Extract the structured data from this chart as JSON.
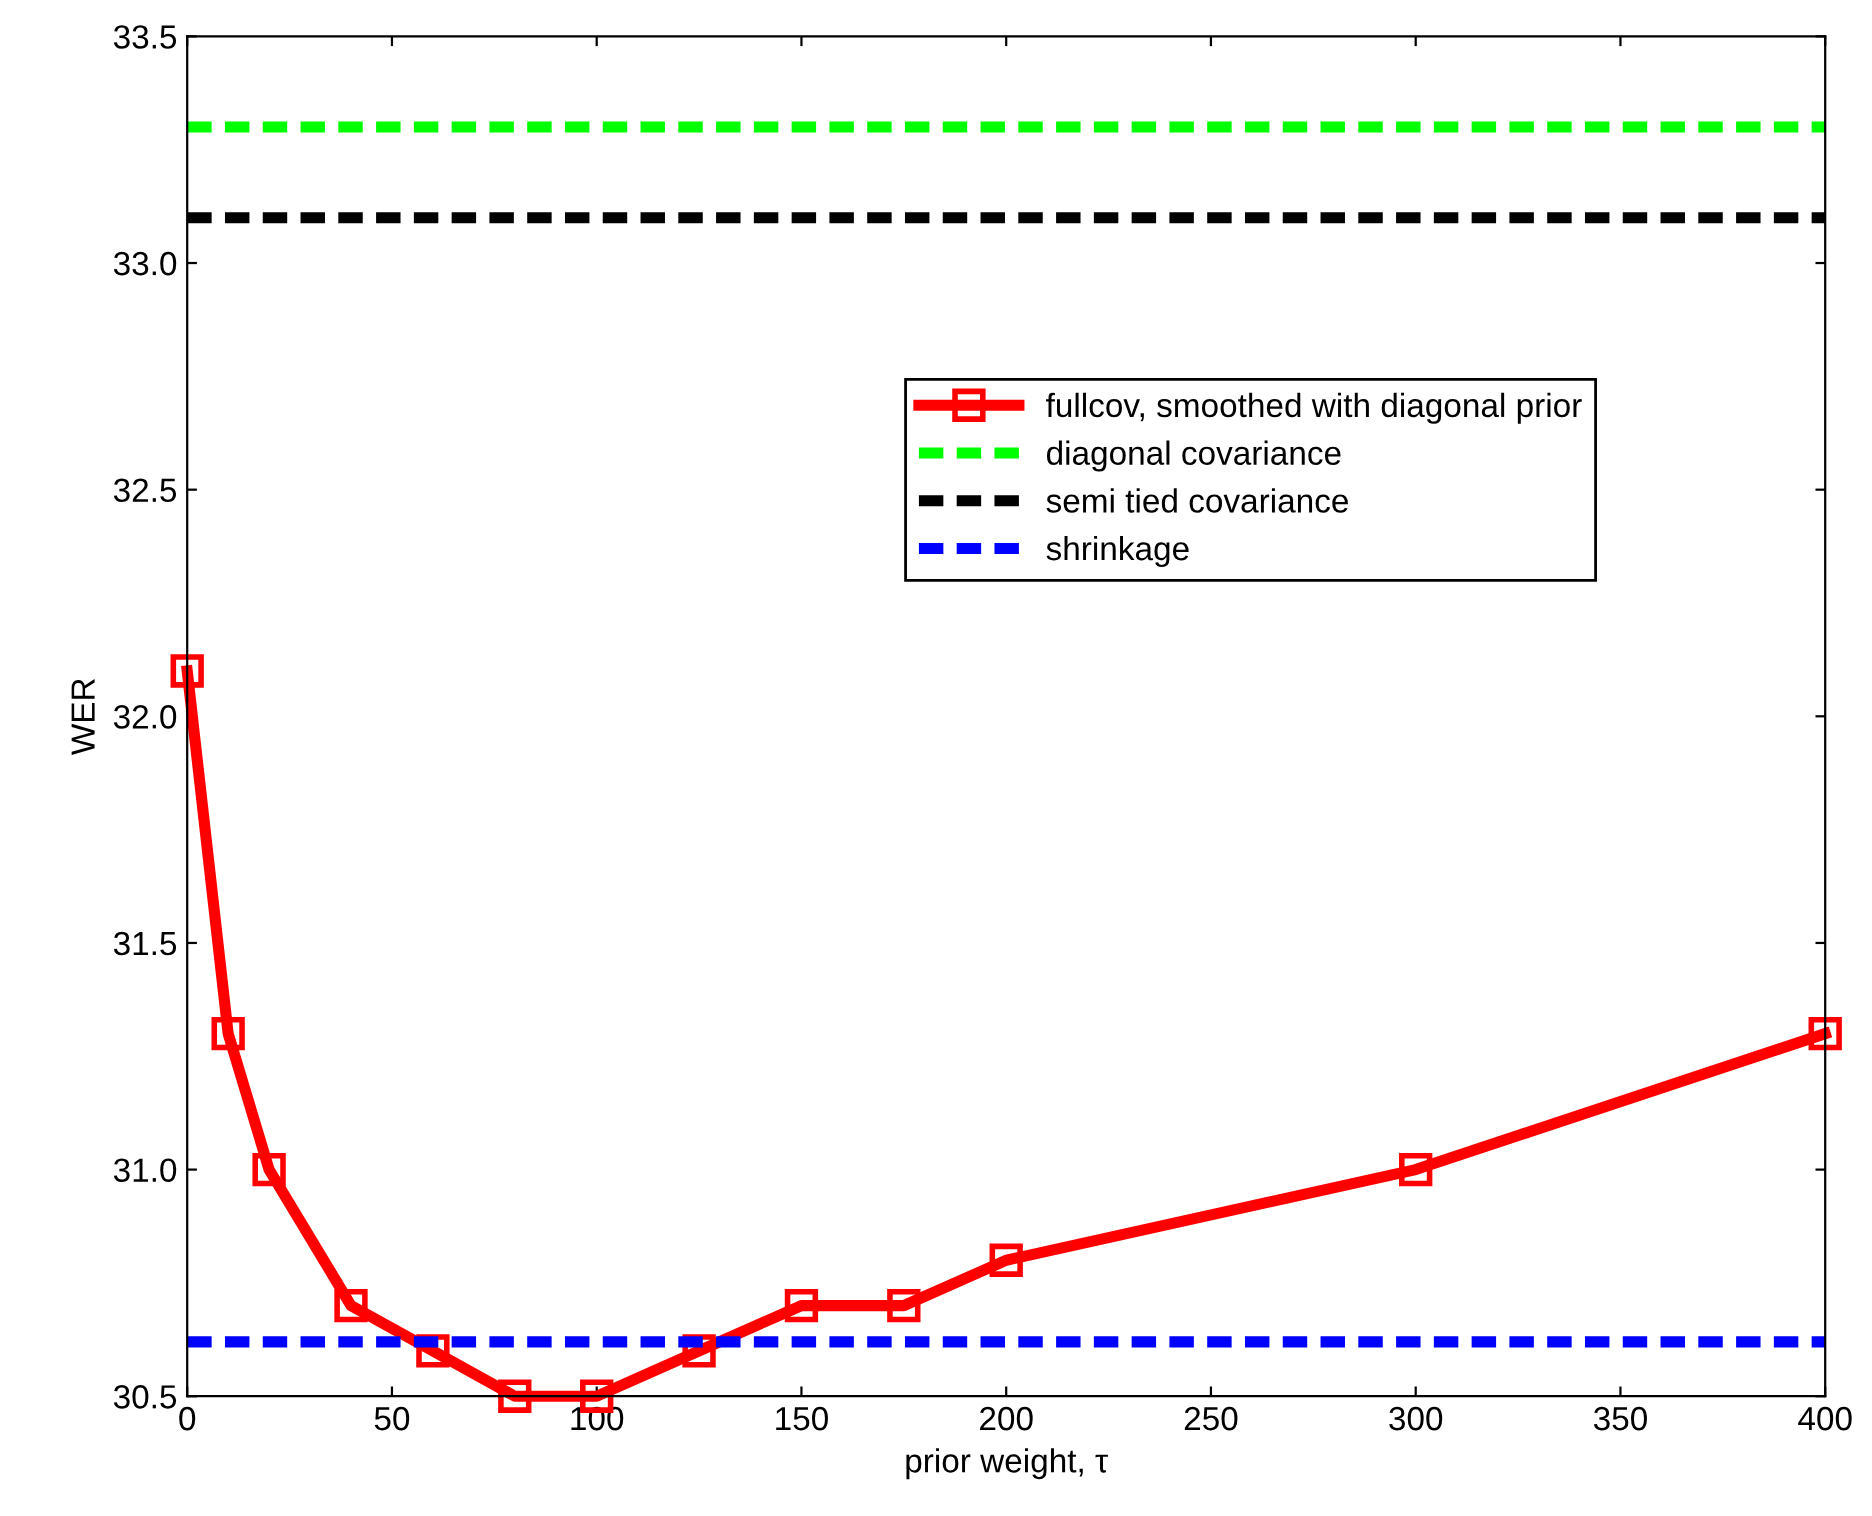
{
  "chart_data": {
    "type": "line",
    "xlabel": "prior weight, τ",
    "ylabel": "WER",
    "xlim": [
      0,
      400
    ],
    "xticks": [
      0,
      50,
      100,
      150,
      200,
      250,
      300,
      350,
      400
    ],
    "ylim": [
      30.5,
      33.5
    ],
    "yticks": [
      30.5,
      {
        "value": 31,
        "label": "31.0"
      },
      31.5,
      {
        "value": 32,
        "label": "32.0"
      },
      32.5,
      {
        "value": 33,
        "label": "33.0"
      },
      33.5
    ],
    "grid": false,
    "legend": "right",
    "series": [
      {
        "name": "fullcov, smoothed with diagonal prior",
        "color": "#ff0000",
        "marker": "square",
        "line_style": "solid",
        "x": [
          0,
          10,
          20,
          40,
          60,
          80,
          100,
          125,
          150,
          175,
          200,
          300,
          400
        ],
        "values": [
          32.1,
          31.3,
          31.0,
          30.7,
          30.6,
          30.5,
          30.5,
          30.6,
          30.7,
          30.7,
          30.8,
          31.0,
          31.3
        ]
      },
      {
        "name": "diagonal covariance",
        "color": "#00ff00",
        "marker": "none",
        "line_style": "dashed",
        "x": [
          0,
          400
        ],
        "values": [
          33.3,
          33.3
        ]
      },
      {
        "name": "semi tied covariance",
        "color": "#000000",
        "marker": "none",
        "line_style": "dashed",
        "x": [
          0,
          400
        ],
        "values": [
          33.1,
          33.1
        ]
      },
      {
        "name": "shrinkage",
        "color": "#0000ff",
        "marker": "none",
        "line_style": "dashed",
        "x": [
          0,
          400
        ],
        "values": [
          30.62,
          30.62
        ]
      }
    ]
  }
}
